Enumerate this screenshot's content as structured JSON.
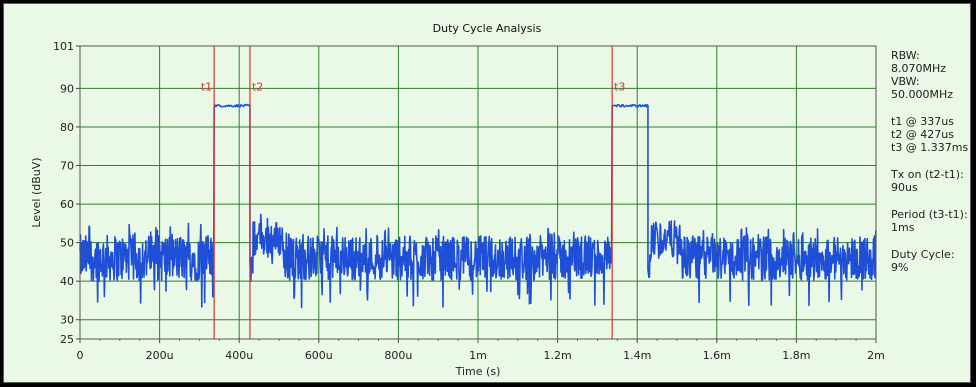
{
  "chart_data": {
    "type": "line",
    "title": "Duty Cycle Analysis",
    "xlabel": "Time (s)",
    "ylabel": "Level (dBuV)",
    "xlim": [
      0,
      0.002
    ],
    "ylim": [
      25,
      101
    ],
    "xticks": [
      {
        "v": 0,
        "label": "0"
      },
      {
        "v": 0.0002,
        "label": "200u"
      },
      {
        "v": 0.0004,
        "label": "400u"
      },
      {
        "v": 0.0006,
        "label": "600u"
      },
      {
        "v": 0.0008,
        "label": "800u"
      },
      {
        "v": 0.001,
        "label": "1m"
      },
      {
        "v": 0.0012,
        "label": "1.2m"
      },
      {
        "v": 0.0014,
        "label": "1.4m"
      },
      {
        "v": 0.0016,
        "label": "1.6m"
      },
      {
        "v": 0.0018,
        "label": "1.8m"
      },
      {
        "v": 0.002,
        "label": "2m"
      }
    ],
    "yticks": [
      {
        "v": 25,
        "label": "25"
      },
      {
        "v": 30,
        "label": "30"
      },
      {
        "v": 40,
        "label": "40"
      },
      {
        "v": 50,
        "label": "50"
      },
      {
        "v": 60,
        "label": "60"
      },
      {
        "v": 70,
        "label": "70"
      },
      {
        "v": 80,
        "label": "80"
      },
      {
        "v": 90,
        "label": "90"
      },
      {
        "v": 101,
        "label": "101"
      }
    ],
    "grid": true,
    "markers": [
      {
        "label": "t1",
        "x": 0.000337
      },
      {
        "label": "t2",
        "x": 0.000427
      },
      {
        "label": "t3",
        "x": 0.001337
      }
    ],
    "series": [
      {
        "color": "#1f4fd6",
        "segments": [
          {
            "kind": "noise",
            "x0": 0,
            "x1": 0.000336,
            "mean": 46,
            "min": 33,
            "max": 55
          },
          {
            "kind": "pulse",
            "x0": 0.000337,
            "x1": 0.000427,
            "level": 85.5
          },
          {
            "kind": "noise",
            "x0": 0.000427,
            "x1": 0.000435,
            "mean": 43,
            "min": 37,
            "max": 50
          },
          {
            "kind": "noise",
            "x0": 0.000435,
            "x1": 0.00051,
            "mean": 51,
            "min": 42,
            "max": 59
          },
          {
            "kind": "noise",
            "x0": 0.00051,
            "x1": 0.001336,
            "mean": 46,
            "min": 33,
            "max": 54
          },
          {
            "kind": "pulse",
            "x0": 0.001337,
            "x1": 0.001427,
            "level": 85.5
          },
          {
            "kind": "noise",
            "x0": 0.001427,
            "x1": 0.001435,
            "mean": 44,
            "min": 38,
            "max": 50
          },
          {
            "kind": "noise",
            "x0": 0.001435,
            "x1": 0.00151,
            "mean": 51,
            "min": 42,
            "max": 59
          },
          {
            "kind": "noise",
            "x0": 0.00151,
            "x1": 0.002,
            "mean": 46,
            "min": 33,
            "max": 54
          }
        ]
      }
    ]
  },
  "info": {
    "rbw_label": "RBW:",
    "rbw_value": "8.070MHz",
    "vbw_label": "VBW:",
    "vbw_value": "50.000MHz",
    "t1": "t1 @ 337us",
    "t2": "t2 @ 427us",
    "t3": "t3 @ 1.337ms",
    "txon_label": "Tx on (t2-t1):",
    "txon_value": "90us",
    "period_label": "Period (t3-t1):",
    "period_value": "1ms",
    "duty_label": "Duty Cycle:",
    "duty_value": "9%"
  },
  "colors": {
    "background": "#eaf8e6",
    "grid": "#2f7f2f",
    "marker": "#e03030",
    "trace": "#1f4fd6"
  }
}
